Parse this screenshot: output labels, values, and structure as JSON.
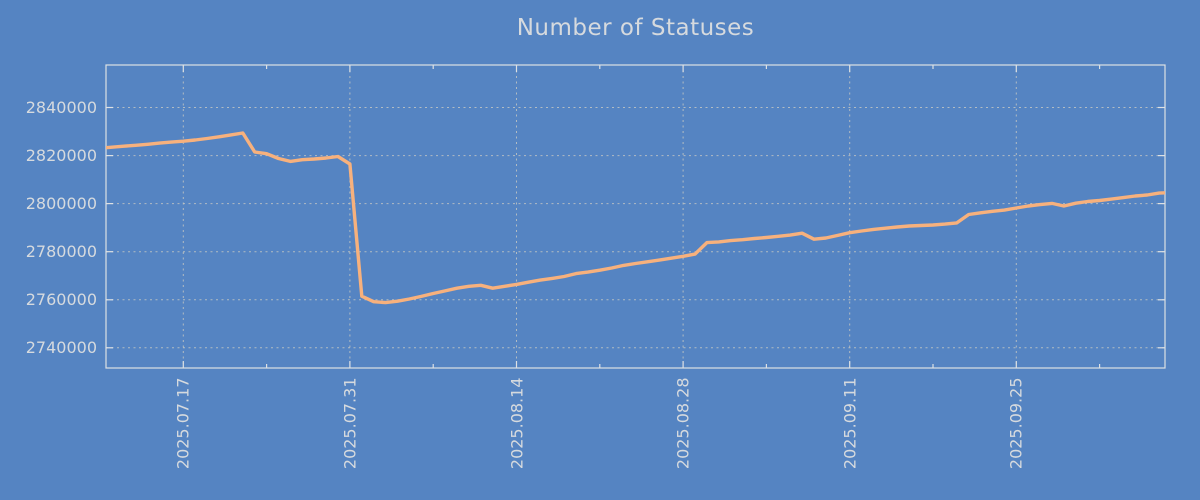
{
  "title": "Number of Statuses",
  "colors": {
    "background": "#5584c2",
    "series_line": "#f7b17d",
    "axis_frame": "#dde1e4",
    "gridline": "#c3c6c3",
    "label_text": "#d6dade"
  },
  "chart_data": {
    "type": "line",
    "title": "Number of Statuses",
    "grid": true,
    "legend": "none",
    "x_domain": [
      "2025-07-10T12:00:00Z",
      "2025-10-07T12:00:00Z"
    ],
    "x_axis": {
      "label": "",
      "tick_label_rotation_deg": 90,
      "major_ticks": [
        {
          "date": "2025-07-17",
          "label": "2025.07.17"
        },
        {
          "date": "2025-07-31",
          "label": "2025.07.31"
        },
        {
          "date": "2025-08-14",
          "label": "2025.08.14"
        },
        {
          "date": "2025-08-28",
          "label": "2025.08.28"
        },
        {
          "date": "2025-09-11",
          "label": "2025.09.11"
        },
        {
          "date": "2025-09-25",
          "label": "2025.09.25"
        }
      ],
      "minor_tick_dates": [
        "2025-07-24",
        "2025-08-07",
        "2025-08-21",
        "2025-09-04",
        "2025-09-18",
        "2025-10-02"
      ]
    },
    "y_axis": {
      "label": "",
      "min": 2731600,
      "max": 2857700,
      "ticks": [
        {
          "value": 2840000,
          "label": "2840000"
        },
        {
          "value": 2820000,
          "label": "2820000"
        },
        {
          "value": 2800000,
          "label": "2800000"
        },
        {
          "value": 2780000,
          "label": "2780000"
        },
        {
          "value": 2760000,
          "label": "2760000"
        },
        {
          "value": 2740000,
          "label": "2740000"
        }
      ]
    },
    "series": [
      {
        "name": "Number of Statuses",
        "start_date": "2025-07-10",
        "interval_days": 1,
        "values": [
          2823100,
          2823500,
          2823900,
          2824300,
          2824700,
          2825200,
          2825600,
          2826000,
          2826500,
          2827100,
          2827800,
          2828600,
          2829400,
          2821500,
          2820800,
          2818800,
          2817600,
          2818300,
          2818600,
          2819000,
          2819600,
          2816500,
          2761500,
          2759200,
          2758800,
          2759400,
          2760300,
          2761400,
          2762600,
          2763700,
          2764800,
          2765600,
          2766000,
          2764800,
          2765600,
          2766400,
          2767300,
          2768200,
          2768900,
          2769700,
          2770900,
          2771500,
          2772300,
          2773200,
          2774300,
          2775100,
          2775800,
          2776500,
          2777300,
          2778100,
          2779000,
          2783800,
          2784100,
          2784600,
          2785000,
          2785500,
          2785900,
          2786400,
          2786900,
          2787700,
          2785200,
          2785700,
          2786800,
          2787900,
          2788600,
          2789300,
          2789800,
          2790300,
          2790700,
          2790900,
          2791100,
          2791500,
          2792000,
          2795500,
          2796200,
          2796800,
          2797300,
          2798200,
          2799000,
          2799600,
          2800100,
          2799000,
          2800200,
          2800900,
          2801300,
          2801900,
          2802500,
          2803200,
          2803600,
          2804400,
          2804600
        ]
      }
    ]
  }
}
